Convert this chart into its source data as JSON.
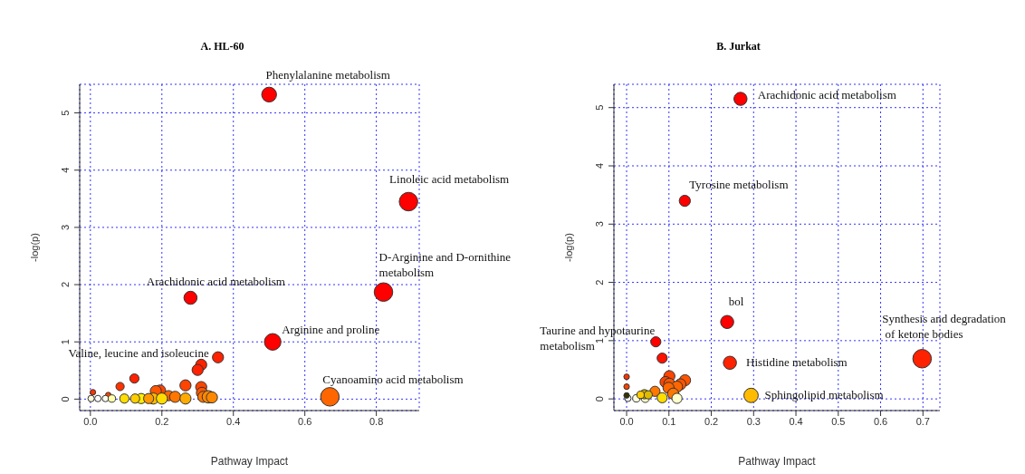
{
  "chart_data": [
    {
      "type": "bubble",
      "title": "A. HL-60",
      "xlabel": "Pathway Impact",
      "ylabel": "-log(p)",
      "grid": true,
      "xlim": [
        -0.03,
        0.92
      ],
      "ylim": [
        -0.2,
        5.5
      ],
      "xticks": [
        {
          "value": 0,
          "label": "0.0"
        },
        {
          "value": 0.2,
          "label": "0.2"
        },
        {
          "value": 0.4,
          "label": "0.4"
        },
        {
          "value": 0.6,
          "label": "0.6"
        },
        {
          "value": 0.8,
          "label": "0.8"
        }
      ],
      "yticks": [
        0,
        1,
        2,
        3,
        4,
        5
      ],
      "x": [
        0.5,
        0.89,
        0.82,
        0.28,
        0.51,
        0.67,
        0.357,
        0.31,
        0.3,
        0.123,
        0.083,
        0.007,
        0.05,
        0.266,
        0.31,
        0.195,
        0.183,
        0.312,
        0.219,
        0.237,
        0.316,
        0.33,
        0.34,
        0.266,
        0.176,
        0.2,
        0.142,
        0.125,
        0.095,
        0.163,
        0.002,
        0.021,
        0.042,
        0.06
      ],
      "values": [
        5.32,
        3.45,
        1.87,
        1.77,
        1.0,
        0.04,
        0.73,
        0.6,
        0.51,
        0.36,
        0.22,
        0.12,
        0.07,
        0.24,
        0.21,
        0.15,
        0.14,
        0.11,
        0.06,
        0.04,
        0.04,
        0.04,
        0.03,
        0.01,
        0.01,
        0.01,
        0.01,
        0.01,
        0.01,
        0.01,
        0.01,
        0.01,
        0.01,
        0.01
      ],
      "sizes": [
        0.64,
        1,
        1,
        0.5,
        0.8,
        1,
        0.36,
        0.36,
        0.36,
        0.25,
        0.2,
        0.09,
        0.09,
        0.36,
        0.36,
        0.36,
        0.36,
        0.36,
        0.3,
        0.36,
        0.36,
        0.45,
        0.36,
        0.36,
        0.36,
        0.36,
        0.3,
        0.25,
        0.25,
        0.3,
        0.12,
        0.12,
        0.12,
        0.16
      ],
      "colors": [
        "#ff0000",
        "#ff0000",
        "#ff0000",
        "#ff0000",
        "#ff0000",
        "#ff6600",
        "#ff2200",
        "#ff2200",
        "#ff2200",
        "#ff2200",
        "#ff3300",
        "#ff3300",
        "#ff4400",
        "#ff4400",
        "#ff4400",
        "#ff4400",
        "#ff5500",
        "#ff5500",
        "#ff6600",
        "#ff7700",
        "#ff7700",
        "#ff8800",
        "#ff8800",
        "#ffaa00",
        "#ffbb00",
        "#ffdd00",
        "#ffee00",
        "#ffcc00",
        "#ffdd00",
        "#ff9900",
        "#ffffdd",
        "#ffffff",
        "#ffffee",
        "#ffffaa"
      ],
      "annotations": [
        {
          "text": "Phenylalanine metabolism",
          "x": 0.5,
          "y": 5.32
        },
        {
          "text": "Linoleic acid metabolism",
          "x": 0.89,
          "y": 3.45
        },
        {
          "text": "D-Arginine and D-ornithine\nmetabolism",
          "x": 0.82,
          "y": 1.87
        },
        {
          "text": "Arachidonic acid metabolism",
          "x": 0.28,
          "y": 1.77
        },
        {
          "text": "Arginine and proline",
          "x": 0.51,
          "y": 1.0
        },
        {
          "text": "Cyanoamino acid metabolism",
          "x": 0.67,
          "y": 0.04
        },
        {
          "text": "Valine, leucine and isoleucine",
          "x": 0.357,
          "y": 0.73
        }
      ]
    },
    {
      "type": "bubble",
      "title": "B. Jurkat",
      "xlabel": "Pathway Impact",
      "ylabel": "-log(p)",
      "grid": true,
      "xlim": [
        -0.03,
        0.74
      ],
      "ylim": [
        -0.2,
        5.4
      ],
      "xticks": [
        {
          "value": 0,
          "label": "0.0"
        },
        {
          "value": 0.1,
          "label": "0.1"
        },
        {
          "value": 0.2,
          "label": "0.2"
        },
        {
          "value": 0.3,
          "label": "0.3"
        },
        {
          "value": 0.4,
          "label": "0.4"
        },
        {
          "value": 0.5,
          "label": "0.5"
        },
        {
          "value": 0.6,
          "label": "0.6"
        },
        {
          "value": 0.7,
          "label": "0.7"
        }
      ],
      "yticks": [
        0,
        1,
        2,
        3,
        4,
        5
      ],
      "x": [
        0.269,
        0.1375,
        0.2375,
        0.698,
        0.244,
        0.294,
        0.069,
        0.084,
        0,
        0,
        0.101,
        0.092,
        0.101,
        0.138,
        0.127,
        0.119,
        0.099,
        0.11,
        0.067,
        0.084,
        0.119,
        0.044,
        0.023,
        0.003,
        0.042,
        0.051,
        0.033,
        0
      ],
      "values": [
        5.15,
        3.4,
        1.32,
        0.69,
        0.62,
        0.06,
        0.98,
        0.7,
        0.38,
        0.21,
        0.39,
        0.29,
        0.26,
        0.32,
        0.25,
        0.21,
        0.19,
        0.09,
        0.13,
        0.02,
        0.01,
        0.01,
        0.01,
        0.01,
        0.08,
        0.07,
        0.07,
        0.06
      ],
      "sizes": [
        0.5,
        0.36,
        0.5,
        1,
        0.5,
        0.6,
        0.3,
        0.3,
        0.09,
        0.09,
        0.36,
        0.36,
        0.36,
        0.36,
        0.36,
        0.36,
        0.36,
        0.36,
        0.3,
        0.3,
        0.3,
        0.2,
        0.16,
        0.12,
        0.25,
        0.2,
        0.16,
        0.09
      ],
      "colors": [
        "#ff0000",
        "#ff0000",
        "#ff0000",
        "#ff2200",
        "#ff2200",
        "#ffbb00",
        "#ff0000",
        "#ff1100",
        "#ff3300",
        "#ff4400",
        "#ff4400",
        "#ff4400",
        "#ff5500",
        "#ff5500",
        "#ff5500",
        "#ff6600",
        "#ff6600",
        "#ff7700",
        "#ff7700",
        "#ffdd00",
        "#ffffcc",
        "#ffffcc",
        "#ffffdd",
        "#ffffff",
        "#ccaa00",
        "#ddbb00",
        "#ffcc00",
        "#333300"
      ],
      "annotations": [
        {
          "text": "Arachidonic acid metabolism",
          "x": 0.269,
          "y": 5.15
        },
        {
          "text": "Tyrosine metabolism",
          "x": 0.1375,
          "y": 3.4
        },
        {
          "text": "bol",
          "x": 0.2375,
          "y": 1.32
        },
        {
          "text": "Synthesis and degradation\n of ketone bodies",
          "x": 0.698,
          "y": 0.69
        },
        {
          "text": "Histidine metabolism",
          "x": 0.244,
          "y": 0.62
        },
        {
          "text": "Sphingolipid metabolism",
          "x": 0.294,
          "y": 0.06
        },
        {
          "text": "Taurine and hypotaurine\nmetabolism",
          "x": 0.069,
          "y": 0.98
        }
      ]
    }
  ]
}
